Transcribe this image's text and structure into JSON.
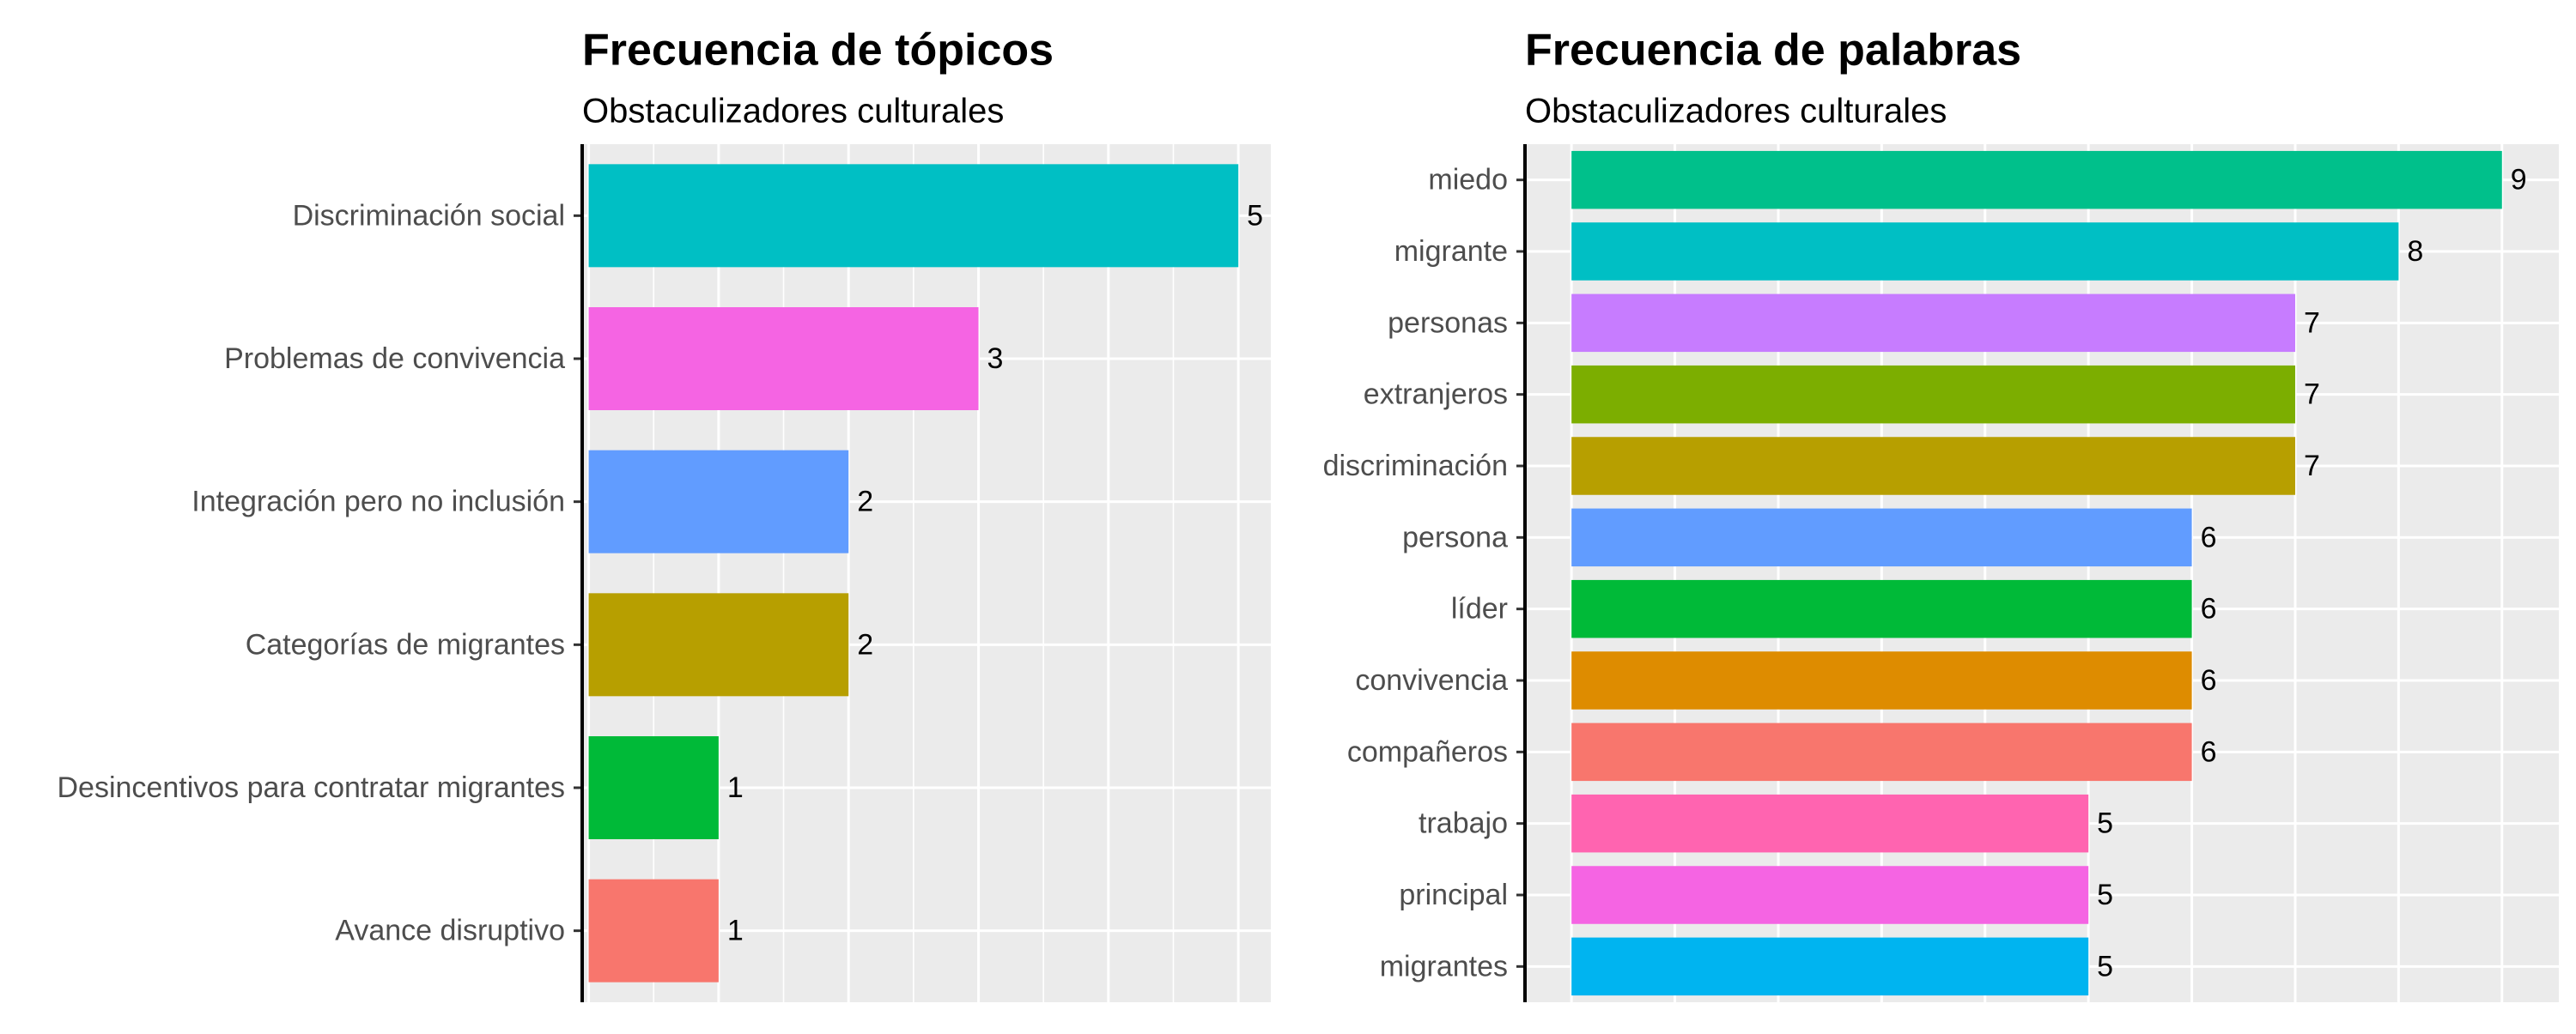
{
  "chart_data": [
    {
      "type": "bar",
      "orientation": "horizontal",
      "title": "Frecuencia de tópicos",
      "subtitle": "Obstaculizadores culturales",
      "categories": [
        "Discriminación social",
        "Problemas de convivencia",
        "Integración pero no inclusión",
        "Categorías de migrantes",
        "Desincentivos para contratar migrantes",
        "Avance disruptivo"
      ],
      "values": [
        5,
        3,
        2,
        2,
        1,
        1
      ],
      "colors": [
        "#00BFC4",
        "#F564E3",
        "#619CFF",
        "#B79F00",
        "#00BA38",
        "#F8766D"
      ],
      "xlim": [
        -0.05,
        5.25
      ],
      "grid": true,
      "background": "#EBEBEB",
      "gridline_color": "#FFFFFF",
      "data_labels": true
    },
    {
      "type": "bar",
      "orientation": "horizontal",
      "title": "Frecuencia de palabras",
      "subtitle": "Obstaculizadores culturales",
      "categories": [
        "miedo",
        "migrante",
        "personas",
        "extranjeros",
        "discriminación",
        "persona",
        "líder",
        "convivencia",
        "compañeros",
        "trabajo",
        "principal",
        "migrantes"
      ],
      "values": [
        9,
        8,
        7,
        7,
        7,
        6,
        6,
        6,
        6,
        5,
        5,
        5
      ],
      "colors": [
        "#00C08B",
        "#00BFC4",
        "#C77CFF",
        "#7CAE00",
        "#B79F00",
        "#619CFF",
        "#00BA38",
        "#DE8C00",
        "#F8766D",
        "#FF64B0",
        "#F564E3",
        "#00B4F0"
      ],
      "xlim": [
        -0.45,
        9.55
      ],
      "grid": true,
      "background": "#EBEBEB",
      "gridline_color": "#FFFFFF",
      "data_labels": true
    }
  ]
}
